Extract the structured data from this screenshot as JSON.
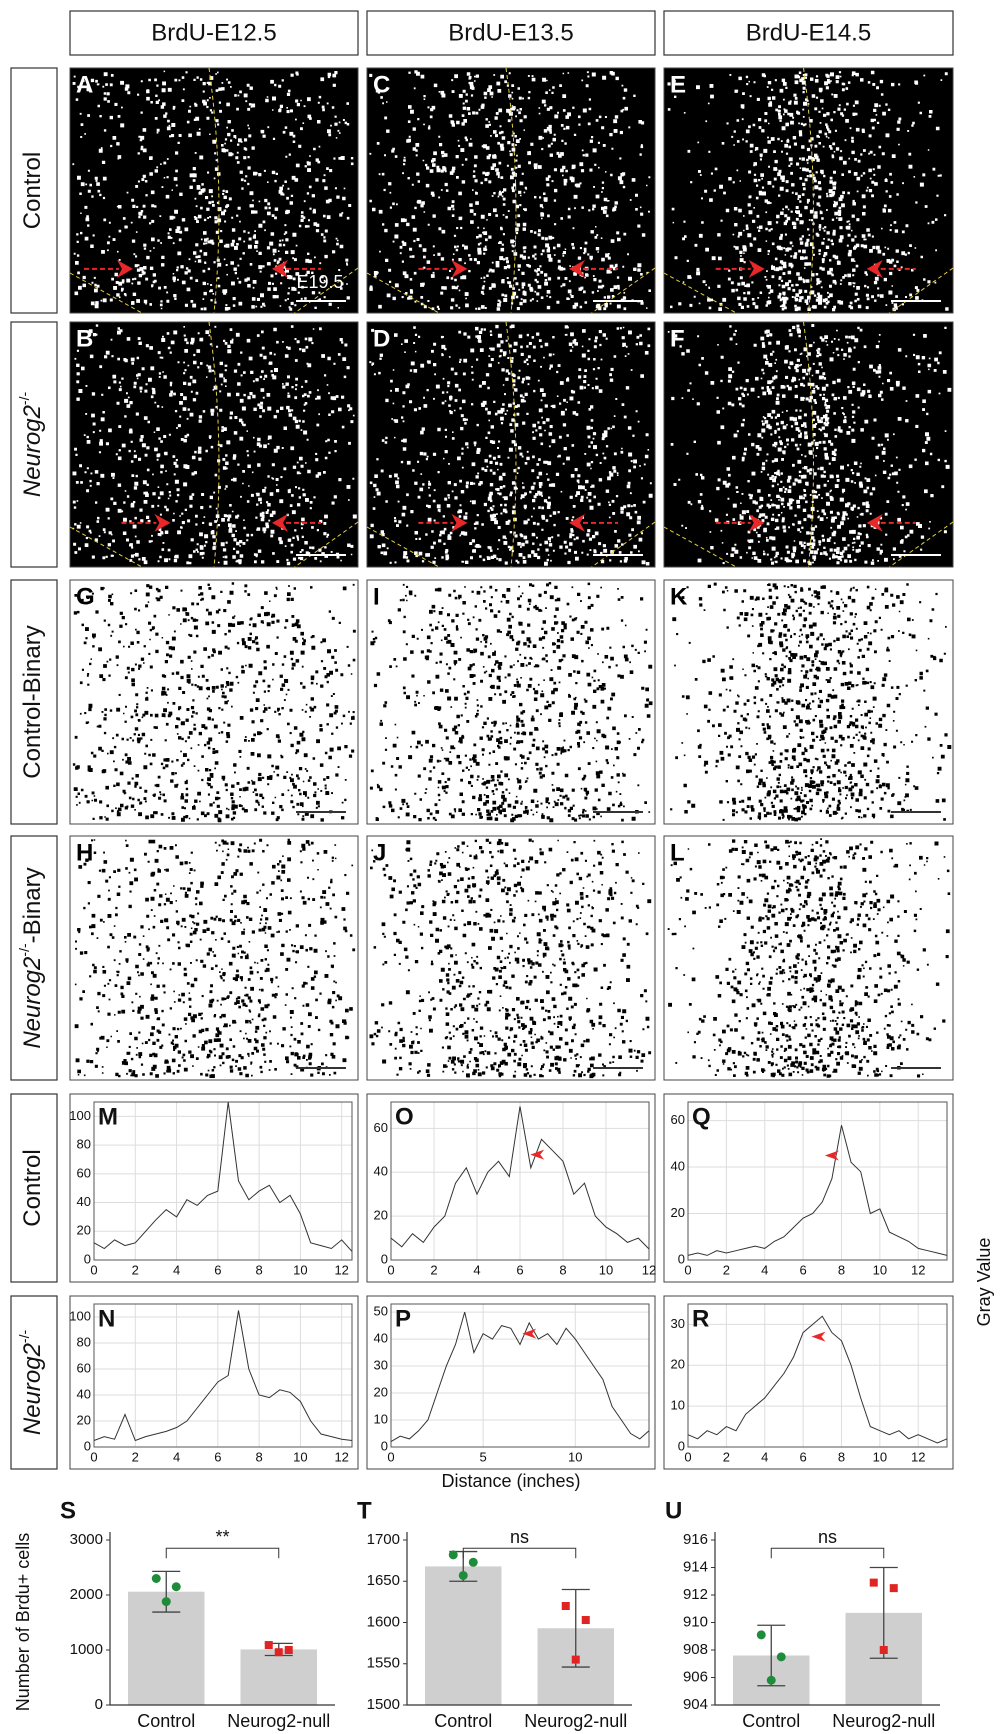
{
  "columns": [
    "BrdU-E12.5",
    "BrdU-E13.5",
    "BrdU-E14.5"
  ],
  "row_labels": [
    {
      "text": "Control"
    },
    {
      "italic": "Neurog2",
      "sup": "-/-"
    },
    {
      "text": "Control-Binary"
    },
    {
      "italic": "Neurog2",
      "sup": "-/-",
      "text": "-Binary"
    },
    {
      "text": "Control"
    },
    {
      "italic": "Neurog2",
      "sup": "-/-"
    }
  ],
  "panels": [
    "A",
    "C",
    "E",
    "B",
    "D",
    "F",
    "G",
    "I",
    "K",
    "H",
    "J",
    "L"
  ],
  "scale_label": "E19.5",
  "profile_ylabel": "Gray Value",
  "profile_xlabel": "Distance (inches)",
  "chart_data": [
    {
      "type": "line",
      "letter": "M",
      "color": "#333333",
      "grid": true,
      "x": [
        0,
        0.5,
        1,
        1.5,
        2,
        2.5,
        3,
        3.5,
        4,
        4.5,
        5,
        5.5,
        6,
        6.5,
        7,
        7.5,
        8,
        8.5,
        9,
        9.5,
        10,
        10.5,
        11,
        11.5,
        12,
        12.5
      ],
      "values": [
        12,
        8,
        14,
        10,
        12,
        20,
        28,
        35,
        30,
        42,
        38,
        45,
        48,
        110,
        55,
        42,
        48,
        52,
        40,
        45,
        32,
        12,
        10,
        8,
        14,
        6
      ],
      "xlim": [
        0,
        12.5
      ],
      "xticks": [
        0,
        2,
        4,
        6,
        8,
        10,
        12
      ],
      "ylim": [
        0,
        110
      ],
      "yticks": [
        0,
        20,
        40,
        60,
        80,
        100
      ]
    },
    {
      "type": "line",
      "letter": "O",
      "color": "#333333",
      "grid": true,
      "x": [
        0,
        0.5,
        1,
        1.5,
        2,
        2.5,
        3,
        3.5,
        4,
        4.5,
        5,
        5.5,
        6,
        6.5,
        7,
        7.5,
        8,
        8.5,
        9,
        9.5,
        10,
        10.5,
        11,
        11.5,
        12
      ],
      "values": [
        10,
        6,
        12,
        8,
        15,
        20,
        35,
        42,
        30,
        40,
        45,
        38,
        70,
        42,
        55,
        50,
        45,
        30,
        35,
        20,
        15,
        12,
        8,
        10,
        5
      ],
      "xlim": [
        0,
        12
      ],
      "xticks": [
        0,
        2,
        4,
        6,
        8,
        10,
        12
      ],
      "ylim": [
        0,
        72
      ],
      "yticks": [
        0,
        20,
        40,
        60
      ],
      "arrow": {
        "x": 6.8,
        "y": 48
      }
    },
    {
      "type": "line",
      "letter": "Q",
      "color": "#333333",
      "grid": true,
      "x": [
        0,
        0.5,
        1,
        1.5,
        2,
        2.5,
        3,
        3.5,
        4,
        4.5,
        5,
        5.5,
        6,
        6.5,
        7,
        7.5,
        8,
        8.5,
        9,
        9.5,
        10,
        10.5,
        11,
        11.5,
        12,
        12.5,
        13,
        13.5
      ],
      "values": [
        2,
        3,
        2,
        4,
        3,
        4,
        5,
        6,
        5,
        8,
        10,
        14,
        18,
        20,
        25,
        35,
        58,
        42,
        38,
        20,
        22,
        12,
        10,
        8,
        5,
        4,
        3,
        2
      ],
      "xlim": [
        0,
        13.5
      ],
      "xticks": [
        0,
        2,
        4,
        6,
        8,
        10,
        12
      ],
      "ylim": [
        0,
        68
      ],
      "yticks": [
        0,
        20,
        40,
        60
      ],
      "arrow": {
        "x": 7.5,
        "y": 45
      }
    },
    {
      "type": "line",
      "letter": "N",
      "color": "#333333",
      "grid": true,
      "x": [
        0,
        0.5,
        1,
        1.5,
        2,
        2.5,
        3,
        3.5,
        4,
        4.5,
        5,
        5.5,
        6,
        6.5,
        7,
        7.5,
        8,
        8.5,
        9,
        9.5,
        10,
        10.5,
        11,
        11.5,
        12,
        12.5
      ],
      "values": [
        5,
        8,
        6,
        25,
        5,
        8,
        10,
        12,
        15,
        20,
        30,
        40,
        50,
        55,
        105,
        60,
        40,
        38,
        44,
        42,
        35,
        20,
        10,
        8,
        6,
        5
      ],
      "xlim": [
        0,
        12.5
      ],
      "xticks": [
        0,
        2,
        4,
        6,
        8,
        10,
        12
      ],
      "ylim": [
        0,
        110
      ],
      "yticks": [
        0,
        20,
        40,
        60,
        80,
        100
      ]
    },
    {
      "type": "line",
      "letter": "P",
      "color": "#333333",
      "grid": true,
      "x": [
        0,
        0.5,
        1,
        1.5,
        2,
        2.5,
        3,
        3.5,
        4,
        4.5,
        5,
        5.5,
        6,
        6.5,
        7,
        7.5,
        8,
        8.5,
        9,
        9.5,
        10,
        10.5,
        11,
        11.5,
        12,
        12.5,
        13,
        13.5,
        14
      ],
      "values": [
        2,
        4,
        3,
        6,
        10,
        20,
        30,
        38,
        50,
        35,
        42,
        40,
        45,
        44,
        38,
        46,
        40,
        42,
        38,
        44,
        40,
        35,
        30,
        25,
        15,
        10,
        5,
        3,
        6
      ],
      "xlim": [
        0,
        14
      ],
      "xticks": [
        0,
        5,
        10
      ],
      "ylim": [
        0,
        53
      ],
      "yticks": [
        0,
        10,
        20,
        30,
        40,
        50
      ],
      "arrow": {
        "x": 7.5,
        "y": 42
      }
    },
    {
      "type": "line",
      "letter": "R",
      "color": "#333333",
      "grid": true,
      "x": [
        0,
        0.5,
        1,
        1.5,
        2,
        2.5,
        3,
        3.5,
        4,
        4.5,
        5,
        5.5,
        6,
        6.5,
        7,
        7.5,
        8,
        8.5,
        9,
        9.5,
        10,
        10.5,
        11,
        11.5,
        12,
        12.5,
        13,
        13.5
      ],
      "values": [
        3,
        2,
        4,
        3,
        5,
        4,
        8,
        10,
        12,
        15,
        18,
        22,
        28,
        30,
        32,
        28,
        26,
        20,
        12,
        5,
        4,
        3,
        4,
        2,
        3,
        2,
        1,
        2
      ],
      "xlim": [
        0,
        13.5
      ],
      "xticks": [
        0,
        2,
        4,
        6,
        8,
        10,
        12
      ],
      "ylim": [
        0,
        35
      ],
      "yticks": [
        0,
        10,
        20,
        30
      ],
      "arrow": {
        "x": 6.8,
        "y": 27
      }
    },
    {
      "type": "bar",
      "letter": "S",
      "ylabel": "Number of Brdu+ cells",
      "categories": [
        "Control",
        "Neurog2-null"
      ],
      "values": [
        2060,
        1010
      ],
      "errors": [
        370,
        110
      ],
      "color": "#cfcfcf",
      "points": [
        [
          2300,
          2150,
          1880
        ],
        [
          1090,
          1000,
          960
        ]
      ],
      "point_colors": [
        "#1e8c3a",
        "#e02424"
      ],
      "ylim": [
        0,
        3000
      ],
      "yticks": [
        0,
        1000,
        2000,
        3000
      ],
      "significance": "**"
    },
    {
      "type": "bar",
      "letter": "T",
      "categories": [
        "Control",
        "Neurog2-null"
      ],
      "values": [
        1668,
        1593
      ],
      "errors": [
        18,
        47
      ],
      "color": "#cfcfcf",
      "points": [
        [
          1682,
          1673,
          1657
        ],
        [
          1620,
          1603,
          1555
        ]
      ],
      "point_colors": [
        "#1e8c3a",
        "#e02424"
      ],
      "ylim": [
        1500,
        1700
      ],
      "yticks": [
        1500,
        1550,
        1600,
        1650,
        1700
      ],
      "significance": "ns"
    },
    {
      "type": "bar",
      "letter": "U",
      "categories": [
        "Control",
        "Neurog2-null"
      ],
      "values": [
        907.6,
        910.7
      ],
      "errors": [
        2.2,
        3.3
      ],
      "color": "#cfcfcf",
      "points": [
        [
          909.1,
          907.5,
          905.8
        ],
        [
          912.9,
          912.5,
          908.0
        ]
      ],
      "point_colors": [
        "#1e8c3a",
        "#e02424"
      ],
      "ylim": [
        904,
        916
      ],
      "yticks": [
        904,
        906,
        908,
        910,
        912,
        914,
        916
      ],
      "significance": "ns"
    }
  ]
}
